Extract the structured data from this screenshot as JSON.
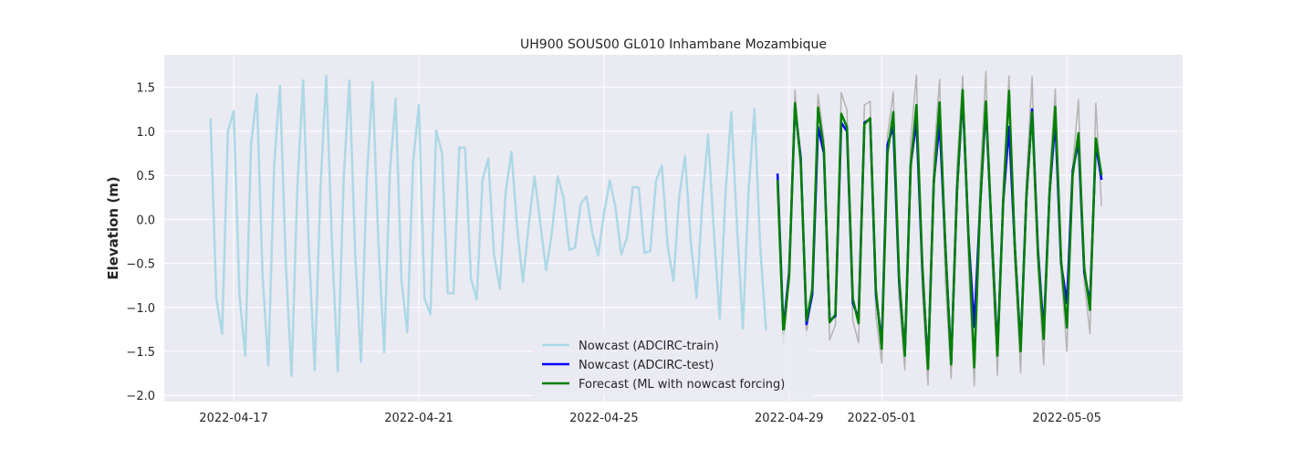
{
  "chart_data": {
    "type": "line",
    "title": "UH900 SOUS00 GL010 Inhambane Mozambique",
    "xlabel": "",
    "ylabel": "Elevation (m)",
    "x_type": "date",
    "xlim": [
      "2022-04-15T12:00",
      "2022-05-07T12:00"
    ],
    "ylim": [
      -2.07,
      1.87
    ],
    "x_ticks": [
      "2022-04-17",
      "2022-04-21",
      "2022-04-25",
      "2022-04-29",
      "2022-05-01",
      "2022-05-05"
    ],
    "y_ticks": [
      -2.0,
      -1.5,
      -1.0,
      -0.5,
      0.0,
      0.5,
      1.0,
      1.5
    ],
    "y_tick_labels": [
      "−2.0",
      "−1.5",
      "−1.0",
      "−0.5",
      "0.0",
      "0.5",
      "1.0",
      "1.5"
    ],
    "grid": true,
    "legend_position": "lower-center",
    "legend": [
      "Nowcast (ADCIRC-train)",
      "Nowcast (ADCIRC-test)",
      "Forecast (ML with nowcast forcing)"
    ],
    "series": [
      {
        "name": "Nowcast (ADCIRC-train)",
        "color": "#add8e6",
        "width": 2.5,
        "x": [
          "2022-04-16T12:00",
          "2022-04-16T15:00",
          "2022-04-16T18:00",
          "2022-04-16T21:00",
          "2022-04-17T00:00",
          "2022-04-17T03:00",
          "2022-04-17T06:00",
          "2022-04-17T09:00",
          "2022-04-17T12:00",
          "2022-04-17T15:00",
          "2022-04-17T18:00",
          "2022-04-17T21:00",
          "2022-04-18T00:00",
          "2022-04-18T03:00",
          "2022-04-18T06:00",
          "2022-04-18T09:00",
          "2022-04-18T12:00",
          "2022-04-18T15:00",
          "2022-04-18T18:00",
          "2022-04-18T21:00",
          "2022-04-19T00:00",
          "2022-04-19T03:00",
          "2022-04-19T06:00",
          "2022-04-19T09:00",
          "2022-04-19T12:00",
          "2022-04-19T15:00",
          "2022-04-19T18:00",
          "2022-04-19T21:00",
          "2022-04-20T00:00",
          "2022-04-20T03:00",
          "2022-04-20T06:00",
          "2022-04-20T09:00",
          "2022-04-20T12:00",
          "2022-04-20T15:00",
          "2022-04-20T18:00",
          "2022-04-20T21:00",
          "2022-04-21T00:00",
          "2022-04-21T03:00",
          "2022-04-21T06:00",
          "2022-04-21T09:00",
          "2022-04-21T12:00",
          "2022-04-21T15:00",
          "2022-04-21T18:00",
          "2022-04-21T21:00",
          "2022-04-22T00:00",
          "2022-04-22T03:00",
          "2022-04-22T06:00",
          "2022-04-22T09:00",
          "2022-04-22T12:00",
          "2022-04-22T15:00",
          "2022-04-22T18:00",
          "2022-04-22T21:00",
          "2022-04-23T00:00",
          "2022-04-23T03:00",
          "2022-04-23T06:00",
          "2022-04-23T09:00",
          "2022-04-23T12:00",
          "2022-04-23T15:00",
          "2022-04-23T18:00",
          "2022-04-23T21:00",
          "2022-04-24T00:00",
          "2022-04-24T03:00",
          "2022-04-24T06:00",
          "2022-04-24T09:00",
          "2022-04-24T12:00",
          "2022-04-24T15:00",
          "2022-04-24T18:00",
          "2022-04-24T21:00",
          "2022-04-25T00:00",
          "2022-04-25T03:00",
          "2022-04-25T06:00",
          "2022-04-25T09:00",
          "2022-04-25T12:00",
          "2022-04-25T15:00",
          "2022-04-25T18:00",
          "2022-04-25T21:00",
          "2022-04-26T00:00",
          "2022-04-26T03:00",
          "2022-04-26T06:00",
          "2022-04-26T09:00",
          "2022-04-26T12:00",
          "2022-04-26T15:00",
          "2022-04-26T18:00",
          "2022-04-26T21:00",
          "2022-04-27T00:00",
          "2022-04-27T03:00",
          "2022-04-27T06:00",
          "2022-04-27T09:00",
          "2022-04-27T12:00",
          "2022-04-27T15:00",
          "2022-04-27T18:00",
          "2022-04-27T21:00",
          "2022-04-28T00:00",
          "2022-04-28T03:00",
          "2022-04-28T06:00",
          "2022-04-28T09:00",
          "2022-04-28T12:00"
        ],
        "y": [
          1.15,
          -0.9,
          -1.3,
          1.0,
          1.23,
          -0.85,
          -1.55,
          0.85,
          1.42,
          -0.65,
          -1.66,
          0.62,
          1.52,
          -0.5,
          -1.78,
          0.35,
          1.58,
          -0.35,
          -1.71,
          0.35,
          1.63,
          -0.3,
          -1.73,
          0.45,
          1.58,
          -0.4,
          -1.62,
          0.45,
          1.56,
          -0.25,
          -1.51,
          0.55,
          1.37,
          -0.7,
          -1.28,
          0.65,
          1.3,
          -0.9,
          -1.08,
          1.01,
          0.75,
          -0.84,
          -0.84,
          0.82,
          0.81,
          -0.67,
          -0.91,
          0.45,
          0.69,
          -0.4,
          -0.79,
          0.3,
          0.77,
          -0.1,
          -0.71,
          -0.05,
          0.49,
          -0.05,
          -0.58,
          -0.15,
          0.49,
          0.25,
          -0.35,
          -0.32,
          0.18,
          0.26,
          -0.16,
          -0.41,
          0.07,
          0.44,
          0.13,
          -0.4,
          -0.2,
          0.37,
          0.36,
          -0.38,
          -0.36,
          0.44,
          0.61,
          -0.3,
          -0.7,
          0.25,
          0.72,
          -0.25,
          -0.89,
          0.2,
          0.96,
          -0.15,
          -1.13,
          0.3,
          1.22,
          -0.1,
          -1.24,
          0.33,
          1.25,
          -0.31,
          -1.26
        ]
      },
      {
        "name": "Nowcast (ADCIRC-test)",
        "color": "#0000ff",
        "width": 2.5,
        "x": [
          "2022-04-28T18:00",
          "2022-04-28T21:00",
          "2022-04-29T00:00",
          "2022-04-29T03:00",
          "2022-04-29T06:00",
          "2022-04-29T09:00",
          "2022-04-29T12:00",
          "2022-04-29T15:00",
          "2022-04-29T18:00",
          "2022-04-29T21:00",
          "2022-04-30T00:00",
          "2022-04-30T03:00",
          "2022-04-30T06:00",
          "2022-04-30T09:00",
          "2022-04-30T12:00",
          "2022-04-30T15:00",
          "2022-04-30T18:00",
          "2022-04-30T21:00",
          "2022-05-01T00:00",
          "2022-05-01T03:00",
          "2022-05-01T06:00",
          "2022-05-01T09:00",
          "2022-05-01T12:00",
          "2022-05-01T15:00",
          "2022-05-01T18:00",
          "2022-05-01T21:00",
          "2022-05-02T00:00",
          "2022-05-02T03:00",
          "2022-05-02T06:00",
          "2022-05-02T09:00",
          "2022-05-02T12:00",
          "2022-05-02T15:00",
          "2022-05-02T18:00",
          "2022-05-02T21:00",
          "2022-05-03T00:00",
          "2022-05-03T03:00",
          "2022-05-03T06:00",
          "2022-05-03T09:00",
          "2022-05-03T12:00",
          "2022-05-03T15:00",
          "2022-05-03T18:00",
          "2022-05-03T21:00",
          "2022-05-04T00:00",
          "2022-05-04T03:00",
          "2022-05-04T06:00",
          "2022-05-04T09:00",
          "2022-05-04T12:00",
          "2022-05-04T15:00",
          "2022-05-04T18:00",
          "2022-05-04T21:00",
          "2022-05-05T00:00",
          "2022-05-05T03:00",
          "2022-05-05T06:00",
          "2022-05-05T09:00",
          "2022-05-05T12:00",
          "2022-05-05T15:00",
          "2022-05-05T18:00"
        ],
        "y": [
          0.52,
          -1.25,
          -0.6,
          1.28,
          0.7,
          -1.19,
          -0.85,
          1.05,
          0.75,
          -1.15,
          -1.1,
          1.1,
          1.0,
          -0.95,
          -1.12,
          1.1,
          1.14,
          -0.85,
          -1.4,
          0.85,
          1.05,
          -0.7,
          -1.52,
          0.62,
          1.12,
          -0.55,
          -1.68,
          0.42,
          1.1,
          -0.3,
          -1.62,
          0.32,
          1.4,
          -0.2,
          -1.22,
          0.15,
          1.28,
          -0.15,
          -1.5,
          0.2,
          1.05,
          -0.3,
          -1.45,
          0.25,
          1.25,
          -0.35,
          -1.28,
          0.3,
          1.12,
          -0.5,
          -0.95,
          0.55,
          0.88,
          -0.6,
          -0.95,
          0.85,
          0.45
        ]
      },
      {
        "name": "Forecast (ML with nowcast forcing)",
        "color": "#008000",
        "width": 2.5,
        "x": [
          "2022-04-28T18:00",
          "2022-04-28T21:00",
          "2022-04-29T00:00",
          "2022-04-29T03:00",
          "2022-04-29T06:00",
          "2022-04-29T09:00",
          "2022-04-29T12:00",
          "2022-04-29T15:00",
          "2022-04-29T18:00",
          "2022-04-29T21:00",
          "2022-04-30T00:00",
          "2022-04-30T03:00",
          "2022-04-30T06:00",
          "2022-04-30T09:00",
          "2022-04-30T12:00",
          "2022-04-30T15:00",
          "2022-04-30T18:00",
          "2022-04-30T21:00",
          "2022-05-01T00:00",
          "2022-05-01T03:00",
          "2022-05-01T06:00",
          "2022-05-01T09:00",
          "2022-05-01T12:00",
          "2022-05-01T15:00",
          "2022-05-01T18:00",
          "2022-05-01T21:00",
          "2022-05-02T00:00",
          "2022-05-02T03:00",
          "2022-05-02T06:00",
          "2022-05-02T09:00",
          "2022-05-02T12:00",
          "2022-05-02T15:00",
          "2022-05-02T18:00",
          "2022-05-02T21:00",
          "2022-05-03T00:00",
          "2022-05-03T03:00",
          "2022-05-03T06:00",
          "2022-05-03T09:00",
          "2022-05-03T12:00",
          "2022-05-03T15:00",
          "2022-05-03T18:00",
          "2022-05-03T21:00",
          "2022-05-04T00:00",
          "2022-05-04T03:00",
          "2022-05-04T06:00",
          "2022-05-04T09:00",
          "2022-05-04T12:00",
          "2022-05-04T15:00",
          "2022-05-04T18:00",
          "2022-05-04T21:00",
          "2022-05-05T00:00",
          "2022-05-05T03:00",
          "2022-05-05T06:00",
          "2022-05-05T09:00",
          "2022-05-05T12:00",
          "2022-05-05T15:00",
          "2022-05-05T18:00"
        ],
        "y": [
          0.45,
          -1.3,
          -0.65,
          1.32,
          0.65,
          -1.15,
          -0.8,
          1.27,
          0.8,
          -1.17,
          -1.08,
          1.2,
          1.05,
          -0.9,
          -1.18,
          1.08,
          1.15,
          -0.8,
          -1.47,
          0.75,
          1.22,
          -0.65,
          -1.55,
          0.6,
          1.3,
          -0.5,
          -1.7,
          0.4,
          1.33,
          -0.3,
          -1.65,
          0.3,
          1.47,
          -0.2,
          -1.68,
          0.15,
          1.34,
          -0.15,
          -1.55,
          0.2,
          1.46,
          -0.3,
          -1.5,
          0.25,
          1.22,
          -0.4,
          -1.36,
          0.3,
          1.28,
          -0.45,
          -1.23,
          0.5,
          0.98,
          -0.55,
          -1.03,
          0.92,
          0.5
        ]
      },
      {
        "name": "",
        "color": "#b3b3b3",
        "width": 1.5,
        "x": [
          "2022-04-28T18:00",
          "2022-04-28T21:00",
          "2022-04-29T00:00",
          "2022-04-29T03:00",
          "2022-04-29T06:00",
          "2022-04-29T09:00",
          "2022-04-29T12:00",
          "2022-04-29T15:00",
          "2022-04-29T18:00",
          "2022-04-29T21:00",
          "2022-04-30T00:00",
          "2022-04-30T03:00",
          "2022-04-30T06:00",
          "2022-04-30T09:00",
          "2022-04-30T12:00",
          "2022-04-30T15:00",
          "2022-04-30T18:00",
          "2022-04-30T21:00",
          "2022-05-01T00:00",
          "2022-05-01T03:00",
          "2022-05-01T06:00",
          "2022-05-01T09:00",
          "2022-05-01T12:00",
          "2022-05-01T15:00",
          "2022-05-01T18:00",
          "2022-05-01T21:00",
          "2022-05-02T00:00",
          "2022-05-02T03:00",
          "2022-05-02T06:00",
          "2022-05-02T09:00",
          "2022-05-02T12:00",
          "2022-05-02T15:00",
          "2022-05-02T18:00",
          "2022-05-02T21:00",
          "2022-05-03T00:00",
          "2022-05-03T03:00",
          "2022-05-03T06:00",
          "2022-05-03T09:00",
          "2022-05-03T12:00",
          "2022-05-03T15:00",
          "2022-05-03T18:00",
          "2022-05-03T21:00",
          "2022-05-04T00:00",
          "2022-05-04T03:00",
          "2022-05-04T06:00",
          "2022-05-04T09:00",
          "2022-05-04T12:00",
          "2022-05-04T15:00",
          "2022-05-04T18:00",
          "2022-05-04T21:00",
          "2022-05-05T00:00",
          "2022-05-05T03:00",
          "2022-05-05T06:00",
          "2022-05-05T09:00",
          "2022-05-05T12:00",
          "2022-05-05T15:00",
          "2022-05-05T18:00"
        ],
        "y": [
          0.3,
          -1.4,
          -0.7,
          1.47,
          0.6,
          -1.32,
          -0.7,
          1.42,
          0.9,
          -1.37,
          -1.2,
          1.44,
          1.24,
          -1.15,
          -1.4,
          1.3,
          1.34,
          -1.1,
          -1.63,
          0.95,
          1.45,
          -0.9,
          -1.71,
          0.9,
          1.64,
          -0.8,
          -1.88,
          0.7,
          1.59,
          -0.7,
          -1.81,
          0.6,
          1.63,
          -0.5,
          -1.89,
          0.45,
          1.68,
          -0.4,
          -1.77,
          0.4,
          1.63,
          -0.5,
          -1.74,
          0.45,
          1.62,
          -0.55,
          -1.65,
          0.5,
          1.48,
          -0.6,
          -1.5,
          0.6,
          1.36,
          -0.7,
          -1.3,
          1.32,
          0.15
        ]
      }
    ]
  }
}
